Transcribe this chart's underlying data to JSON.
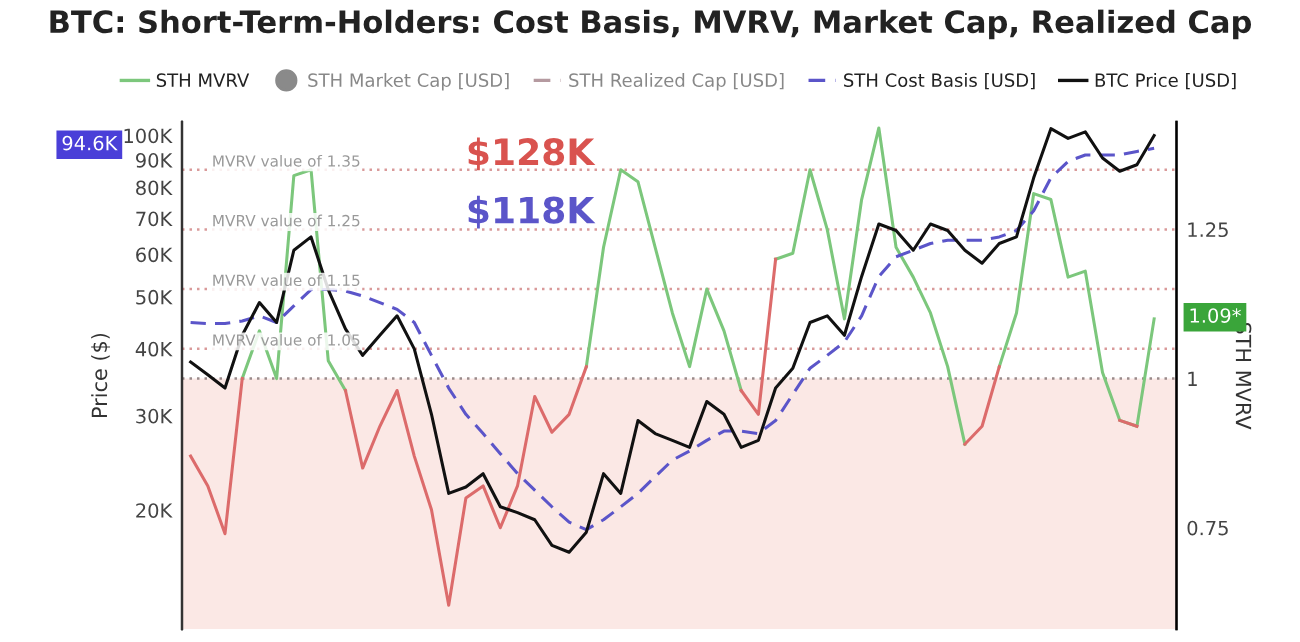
{
  "chart_data": {
    "type": "line",
    "title": "BTC: Short-Term-Holders: Cost Basis, MVRV, Market Cap, Realized Cap",
    "ylabel": "Price ($)",
    "y2label": "STH MVRV",
    "categories": [
      null,
      null,
      null,
      null,
      null,
      null,
      null,
      null,
      null,
      null,
      null,
      null,
      null,
      null,
      null,
      null,
      null,
      null,
      null,
      null,
      null,
      null,
      null,
      null,
      null,
      null,
      null,
      null,
      null,
      null,
      null,
      null,
      null,
      null,
      null,
      null,
      null,
      null,
      null,
      null,
      null,
      null,
      null,
      null,
      null,
      null,
      null,
      null,
      null,
      null,
      null,
      null,
      null,
      null,
      null,
      null,
      null
    ],
    "series": [
      {
        "name": "STH MVRV",
        "color": "#7cc77c",
        "axis": "y2",
        "values": [
          null,
          null,
          null,
          1.0,
          1.08,
          1.0,
          1.34,
          1.35,
          1.03,
          0.98,
          null,
          null,
          null,
          null,
          null,
          null,
          null,
          null,
          null,
          null,
          null,
          null,
          null,
          1.02,
          1.22,
          1.35,
          1.33,
          1.22,
          1.11,
          1.02,
          1.15,
          1.08,
          0.98,
          null,
          1.2,
          1.21,
          1.35,
          1.25,
          1.1,
          1.3,
          1.42,
          1.22,
          1.17,
          1.11,
          1.02,
          0.89,
          null,
          1.02,
          1.11,
          1.31,
          1.3,
          1.17,
          1.18,
          1.01,
          0.93,
          0.92,
          1.1
        ]
      },
      {
        "color": "#dc6b6b",
        "axis": "y2",
        "values": [
          0.87,
          0.82,
          0.74,
          1.0,
          null,
          null,
          null,
          null,
          null,
          0.98,
          0.85,
          0.92,
          0.98,
          0.87,
          0.78,
          0.62,
          0.8,
          0.82,
          0.75,
          0.82,
          0.97,
          0.91,
          0.94,
          1.02,
          null,
          null,
          null,
          null,
          null,
          null,
          null,
          null,
          0.98,
          0.94,
          1.2,
          null,
          null,
          null,
          null,
          null,
          null,
          null,
          null,
          null,
          null,
          0.89,
          0.92,
          1.02,
          null,
          null,
          null,
          null,
          null,
          null,
          0.93,
          0.92,
          null
        ]
      },
      {
        "name": "STH Market Cap [USD]",
        "color": "#8a8a8a",
        "type": "scatter",
        "values": [
          null,
          null,
          null,
          null,
          null,
          null,
          null,
          null,
          null,
          null,
          null,
          null,
          null,
          null,
          null,
          null,
          null,
          null,
          null,
          null,
          null,
          null,
          null,
          null,
          null,
          null,
          null,
          null,
          null,
          null,
          null,
          null,
          null,
          null,
          null,
          null,
          null,
          null,
          null,
          null,
          null,
          null,
          null,
          null,
          null,
          null,
          null,
          null,
          null,
          null,
          null,
          null,
          null,
          null,
          null,
          null,
          null
        ]
      },
      {
        "name": "STH Realized Cap [USD]",
        "color": "#b59aa0",
        "line_style": "dashed",
        "values": [
          null,
          null,
          null,
          null,
          null,
          null,
          null,
          null,
          null,
          null,
          null,
          null,
          null,
          null,
          null,
          null,
          null,
          null,
          null,
          null,
          null,
          null,
          null,
          null,
          null,
          null,
          null,
          null,
          null,
          null,
          null,
          null,
          null,
          null,
          null,
          null,
          null,
          null,
          null,
          null,
          null,
          null,
          null,
          null,
          null,
          null,
          null,
          null,
          null,
          null,
          null,
          null,
          null,
          null,
          null,
          null,
          null
        ]
      },
      {
        "name": "STH Cost Basis [USD]",
        "color": "#5b55c9",
        "line_style": "dashed",
        "values": [
          44800,
          44600,
          44600,
          45100,
          46100,
          44800,
          48100,
          51600,
          51600,
          51300,
          50200,
          48800,
          47400,
          44800,
          38900,
          33800,
          30200,
          27800,
          25500,
          23400,
          21800,
          20300,
          19000,
          18400,
          19200,
          20300,
          21500,
          23100,
          24800,
          25800,
          27000,
          28100,
          28100,
          27800,
          29400,
          32900,
          36800,
          38900,
          41200,
          46100,
          54600,
          59400,
          61100,
          62900,
          63800,
          63800,
          63800,
          64700,
          66500,
          72400,
          83400,
          89500,
          92000,
          92000,
          92000,
          93400,
          94700
        ]
      },
      {
        "name": "BTC Price [USD]",
        "color": "#111111",
        "values": [
          37800,
          35800,
          33800,
          42400,
          48800,
          44800,
          61100,
          64700,
          51600,
          43600,
          38900,
          42400,
          46100,
          40000,
          30200,
          21500,
          22100,
          23400,
          20300,
          19800,
          19200,
          17200,
          16700,
          18200,
          23400,
          21500,
          29400,
          27800,
          27000,
          26200,
          31900,
          30200,
          26200,
          27000,
          33800,
          36800,
          44800,
          46100,
          42400,
          54600,
          68400,
          66500,
          61100,
          68400,
          66500,
          61100,
          57800,
          62900,
          64700,
          83400,
          103000,
          98800,
          101600,
          90800,
          85800,
          88200,
          100000
        ]
      }
    ],
    "log": true,
    "ylim": [
      12000,
      106000
    ],
    "yticks": [
      {
        "value": 20000,
        "label": "20K"
      },
      {
        "value": 30000,
        "label": "30K"
      },
      {
        "value": 40000,
        "label": "40K"
      },
      {
        "value": 50000,
        "label": "50K"
      },
      {
        "value": 60000,
        "label": "60K"
      },
      {
        "value": 70000,
        "label": "70K"
      },
      {
        "value": 80000,
        "label": "80K"
      },
      {
        "value": 90000,
        "label": "90K"
      },
      {
        "value": 100000,
        "label": "100K"
      }
    ],
    "y2lim": [
      0.58,
      1.43
    ],
    "y2ticks": [
      0.75,
      1,
      1.25
    ],
    "ref_lines": [
      {
        "axis": "y2",
        "value": 1.35,
        "label": "MVRV value of 1.35",
        "color": "#d99a9a",
        "line_style": "dotted"
      },
      {
        "axis": "y2",
        "value": 1.25,
        "label": "MVRV value of 1.25",
        "color": "#d99a9a",
        "line_style": "dotted"
      },
      {
        "axis": "y2",
        "value": 1.15,
        "label": "MVRV value of 1.15",
        "color": "#d99a9a",
        "line_style": "dotted"
      },
      {
        "axis": "y2",
        "value": 1.05,
        "label": "MVRV value of 1.05",
        "color": "#d99a9a",
        "line_style": "dotted"
      },
      {
        "axis": "y2",
        "value": 1,
        "color": "#9a8a8a",
        "line_style": "dotted"
      }
    ],
    "bands": [
      {
        "axis": "y2",
        "from": 0.58,
        "to": 1,
        "color": "#fbe8e5"
      }
    ],
    "annotations": [
      "$128K",
      "$118K",
      "94.6K",
      "1.09*"
    ],
    "legend": "top"
  }
}
